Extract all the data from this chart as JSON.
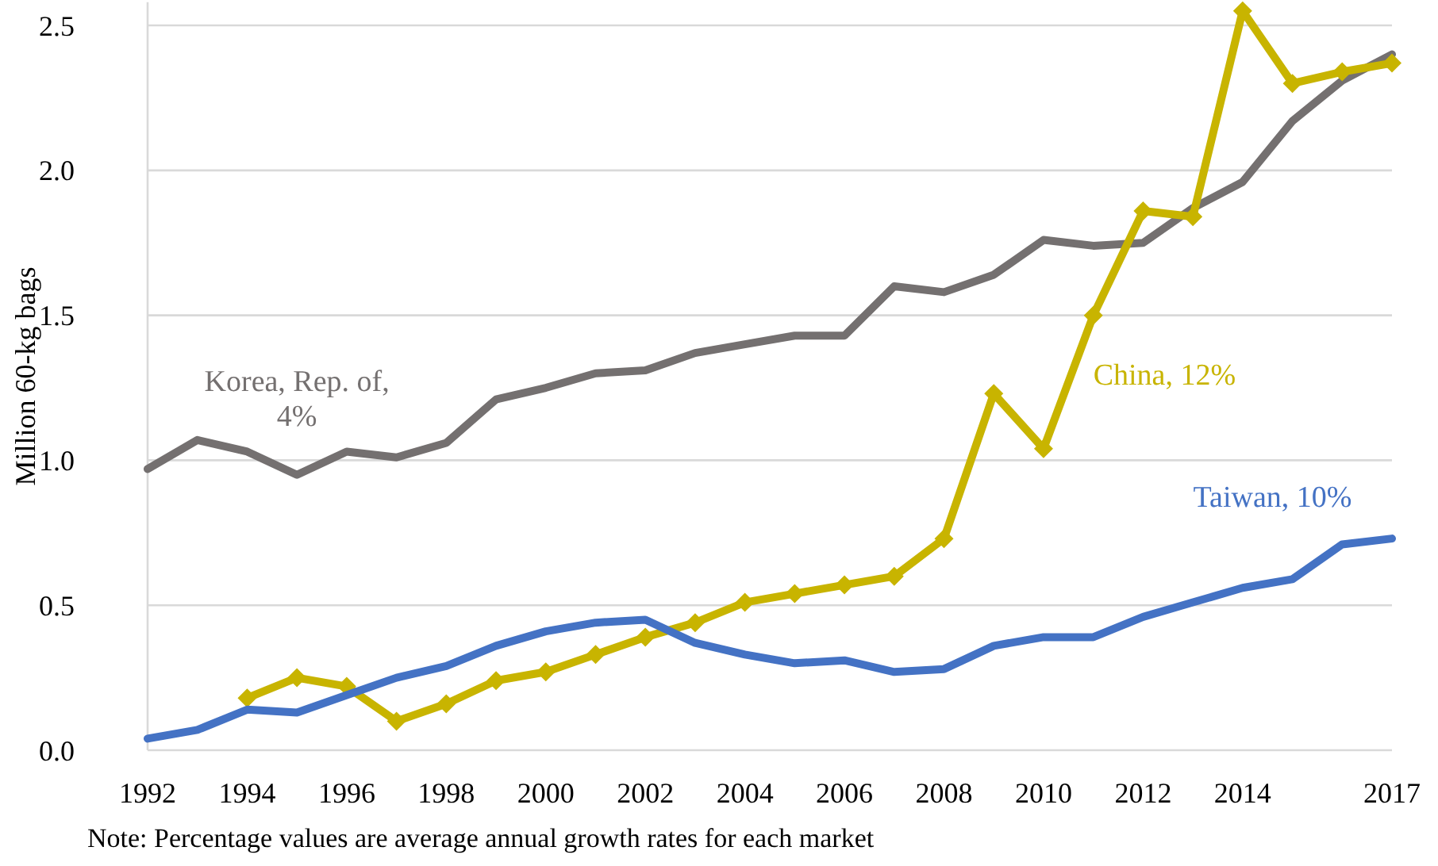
{
  "chart_data": {
    "type": "line",
    "ylabel": "Million 60-kg bags",
    "x": [
      1992,
      1993,
      1994,
      1995,
      1996,
      1997,
      1998,
      1999,
      2000,
      2001,
      2002,
      2003,
      2004,
      2005,
      2006,
      2007,
      2008,
      2009,
      2010,
      2011,
      2012,
      2013,
      2014,
      2015,
      2016,
      2017
    ],
    "xlim": [
      1992,
      2017
    ],
    "xticks": [
      1992,
      1994,
      1996,
      1998,
      2000,
      2002,
      2004,
      2006,
      2008,
      2010,
      2012,
      2014,
      2017
    ],
    "ylim": [
      0,
      2.58
    ],
    "yticks": [
      {
        "value": 0,
        "label": "0.0"
      },
      0.5,
      {
        "value": 1,
        "label": "1.0"
      },
      1.5,
      {
        "value": 2,
        "label": "2.0"
      },
      2.5
    ],
    "grid": "y",
    "legend": false,
    "line_style": "solid",
    "series": [
      {
        "name": "Korea, Rep. of, 4%",
        "color": "#747070",
        "marker": "none",
        "values": [
          0.97,
          1.07,
          1.03,
          0.95,
          1.03,
          1.01,
          1.06,
          1.21,
          1.25,
          1.3,
          1.31,
          1.37,
          1.4,
          1.43,
          1.43,
          1.6,
          1.58,
          1.64,
          1.76,
          1.74,
          1.75,
          1.87,
          1.96,
          2.17,
          2.31,
          2.4
        ]
      },
      {
        "name": "China, 12%",
        "color": "#c8b400",
        "marker": "diamond",
        "values": [
          null,
          null,
          0.18,
          0.25,
          0.22,
          0.1,
          0.16,
          0.24,
          0.27,
          0.33,
          0.39,
          0.44,
          0.51,
          0.54,
          0.57,
          0.6,
          0.73,
          1.23,
          1.04,
          1.5,
          1.86,
          1.84,
          2.55,
          2.3,
          2.34,
          2.37
        ]
      },
      {
        "name": "Taiwan, 10%",
        "color": "#4472c4",
        "marker": "none",
        "values": [
          0.04,
          0.07,
          0.14,
          0.13,
          0.19,
          0.25,
          0.29,
          0.36,
          0.41,
          0.44,
          0.45,
          0.37,
          0.33,
          0.3,
          0.31,
          0.27,
          0.28,
          0.36,
          0.39,
          0.39,
          0.46,
          0.51,
          0.56,
          0.59,
          0.71,
          0.73
        ]
      }
    ],
    "annotations": [
      "Note: Percentage values are average annual growth rates for each market"
    ]
  }
}
